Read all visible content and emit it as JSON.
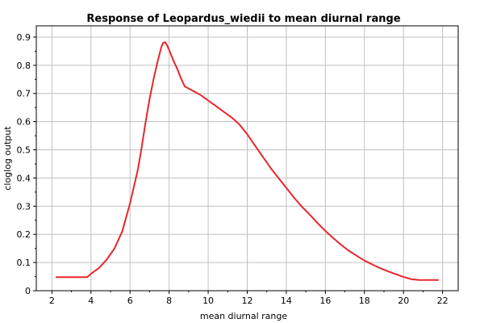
{
  "chart_data": {
    "type": "line",
    "title": "Response of Leopardus_wiedii to mean diurnal range",
    "xlabel": "mean diurnal range",
    "ylabel": "cloglog output",
    "xlim": [
      1.2,
      22.8
    ],
    "ylim": [
      0,
      0.94
    ],
    "grid": true,
    "x_ticks": [
      "2",
      "4",
      "6",
      "8",
      "10",
      "12",
      "14",
      "16",
      "18",
      "20",
      "22"
    ],
    "y_ticks": [
      "0",
      "0.1",
      "0.2",
      "0.3",
      "0.4",
      "0.5",
      "0.6",
      "0.7",
      "0.8",
      "0.9"
    ],
    "line_color": "#e8262b",
    "series": [
      {
        "x": [
          2.2,
          3.8,
          4.0,
          4.4,
          4.8,
          5.2,
          5.6,
          6.0,
          6.4,
          6.6,
          6.8,
          7.0,
          7.2,
          7.4,
          7.6,
          7.7,
          7.8,
          7.9,
          8.0,
          8.2,
          8.4,
          8.6,
          8.8,
          9.2,
          9.6,
          10.0,
          10.4,
          10.8,
          11.2,
          11.6,
          12.0,
          12.4,
          12.8,
          13.2,
          13.6,
          14.0,
          14.4,
          14.8,
          15.2,
          15.6,
          16.0,
          16.4,
          16.8,
          17.2,
          17.6,
          18.0,
          18.4,
          18.8,
          19.2,
          19.6,
          20.0,
          20.4,
          20.8,
          21.2,
          21.8
        ],
        "y": [
          0.048,
          0.048,
          0.06,
          0.08,
          0.11,
          0.15,
          0.21,
          0.31,
          0.43,
          0.51,
          0.6,
          0.68,
          0.75,
          0.81,
          0.865,
          0.88,
          0.882,
          0.87,
          0.855,
          0.82,
          0.79,
          0.755,
          0.725,
          0.71,
          0.695,
          0.675,
          0.655,
          0.635,
          0.615,
          0.59,
          0.555,
          0.515,
          0.475,
          0.435,
          0.4,
          0.365,
          0.33,
          0.298,
          0.27,
          0.24,
          0.212,
          0.187,
          0.163,
          0.142,
          0.124,
          0.107,
          0.093,
          0.08,
          0.069,
          0.059,
          0.049,
          0.041,
          0.038,
          0.038,
          0.038
        ]
      }
    ]
  }
}
